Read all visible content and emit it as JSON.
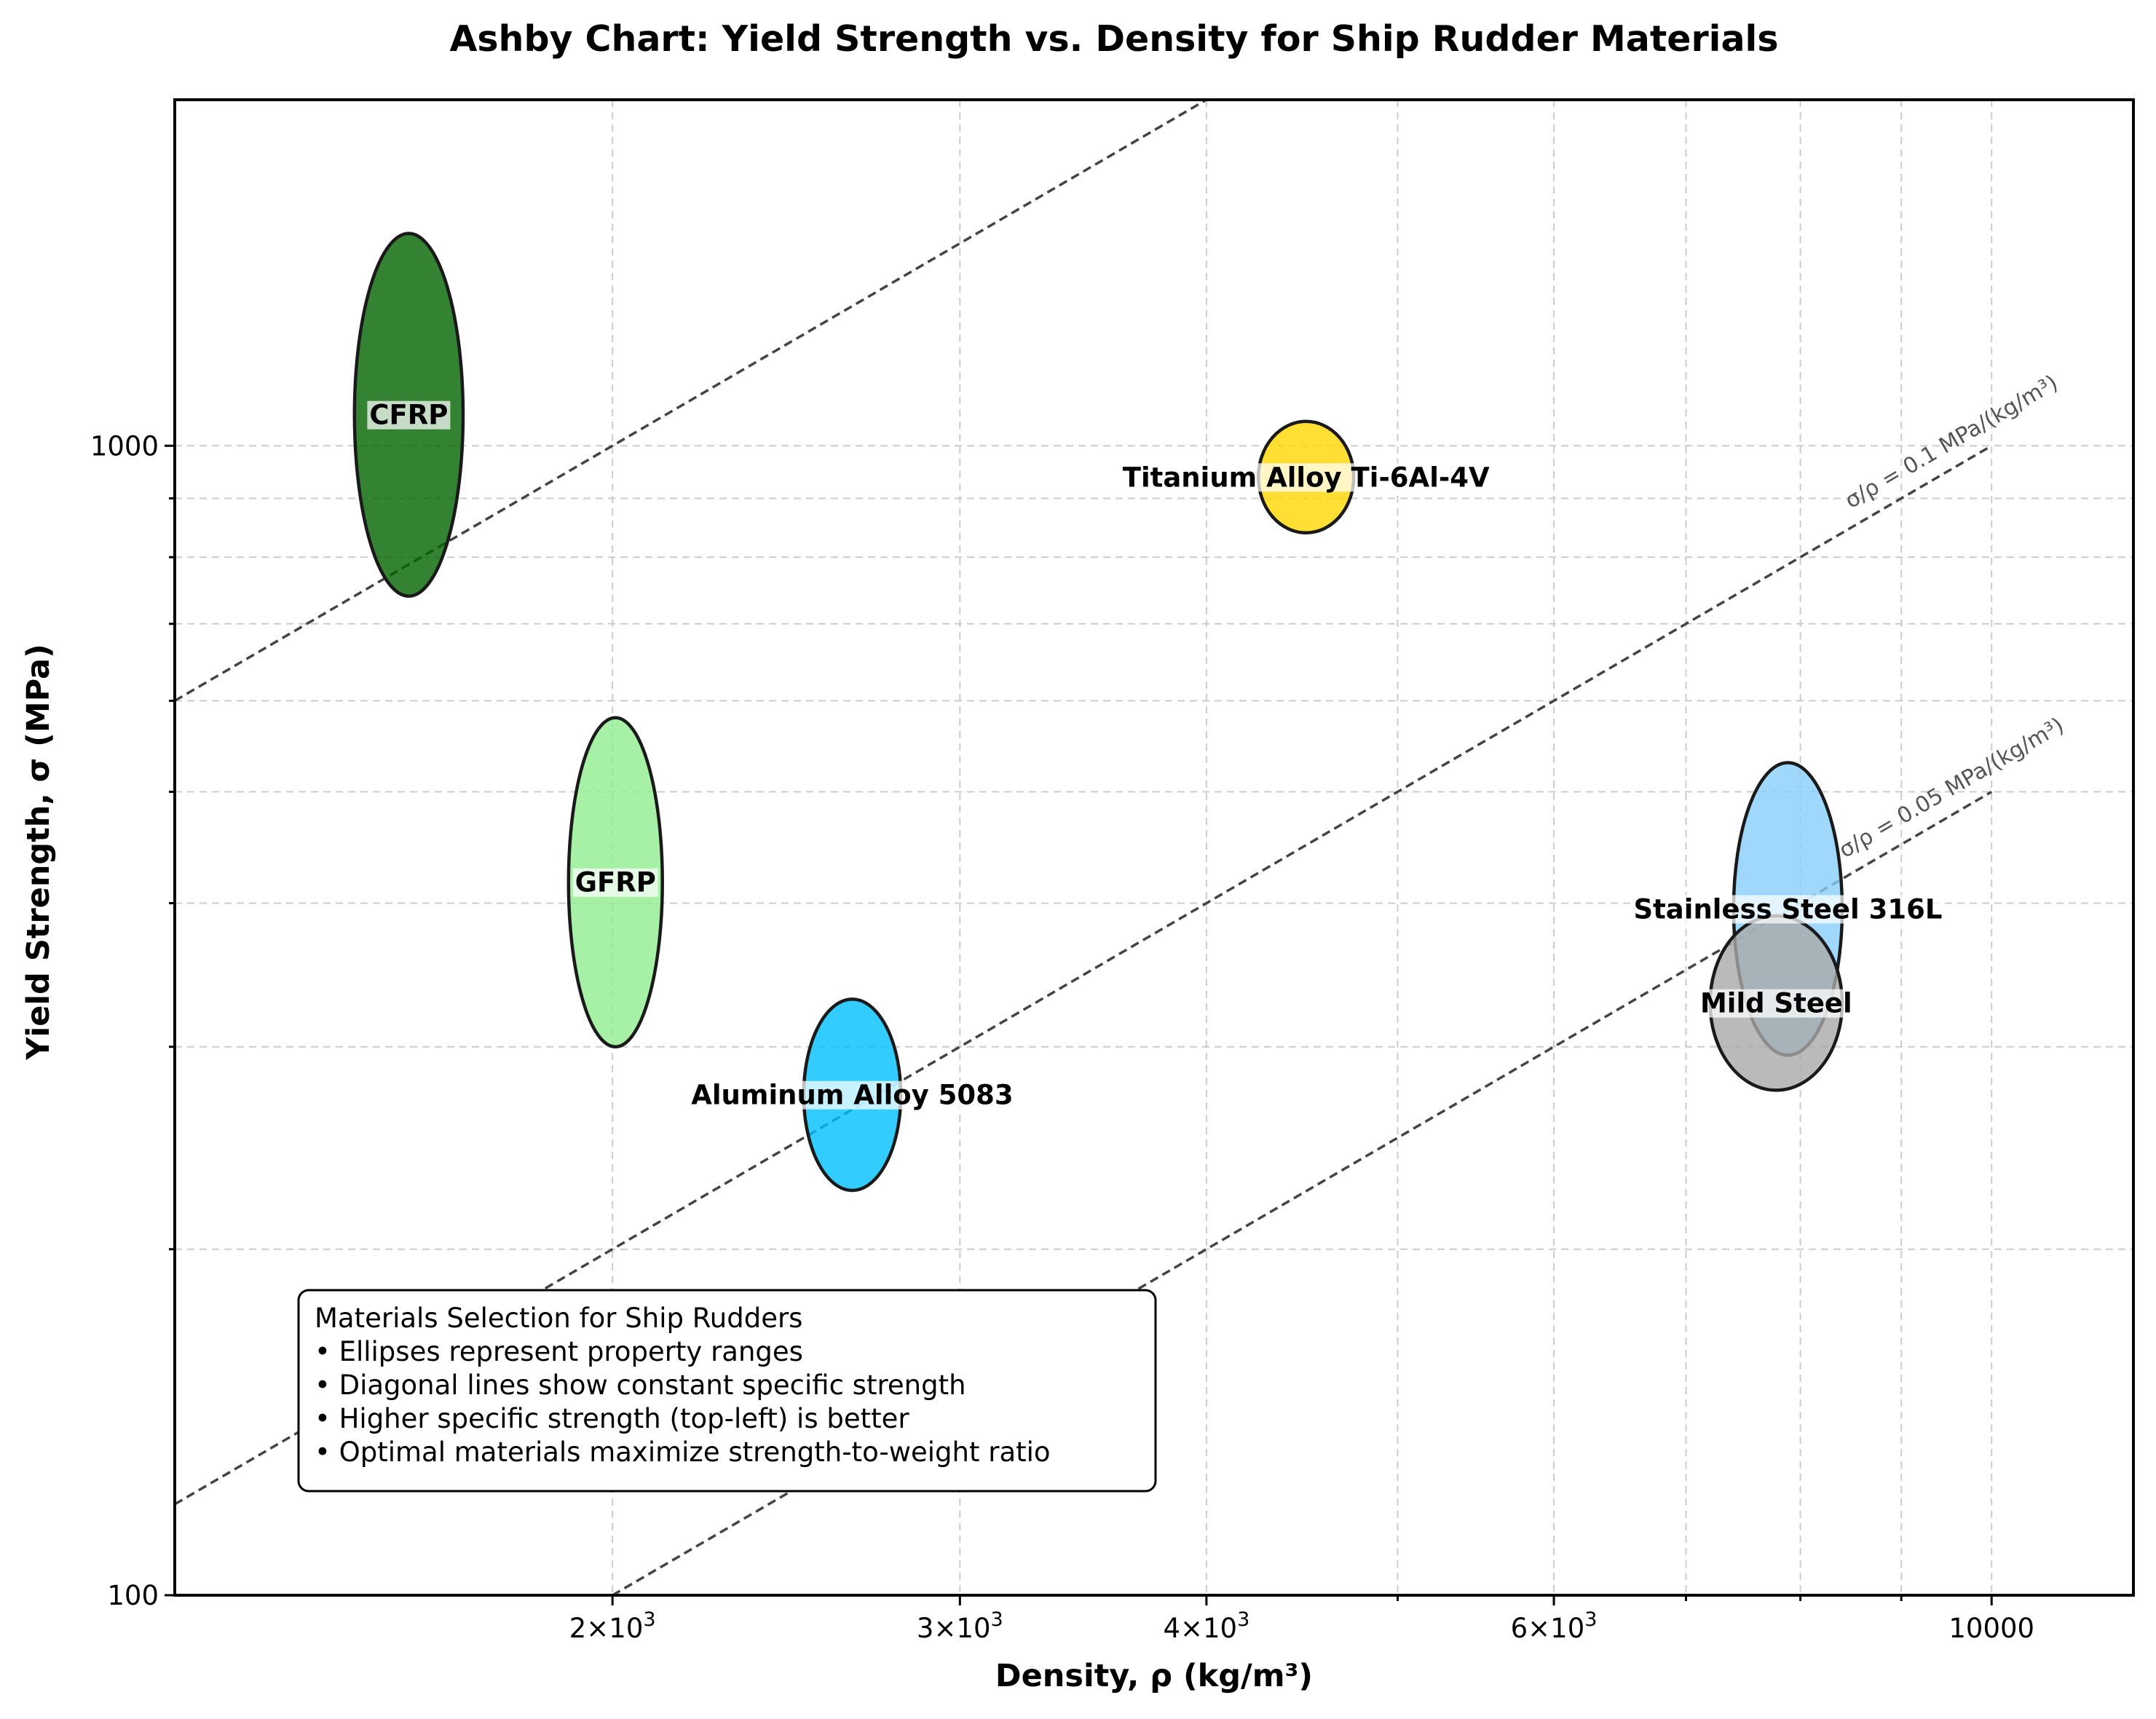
{
  "chart_data": {
    "type": "scatter",
    "title": "Ashby Chart: Yield Strength vs. Density for Ship Rudder Materials",
    "xlabel": "Density, ρ (kg/m³)",
    "ylabel": "Yield Strength, σ (MPa)",
    "xscale": "log",
    "yscale": "log",
    "xlim": [
      1200,
      11800
    ],
    "ylim": [
      100,
      2000
    ],
    "grid": true,
    "x_ticks": [
      {
        "value": 2000,
        "label": "2×10³",
        "mant": "2×10",
        "exp": "3"
      },
      {
        "value": 3000,
        "label": "3×10³",
        "mant": "3×10",
        "exp": "3"
      },
      {
        "value": 4000,
        "label": "4×10³",
        "mant": "4×10",
        "exp": "3"
      },
      {
        "value": 6000,
        "label": "6×10³",
        "mant": "6×10",
        "exp": "3"
      },
      {
        "value": 10000,
        "label": "10000",
        "mant": "10000",
        "exp": ""
      }
    ],
    "y_ticks": [
      {
        "value": 100,
        "label": "100"
      },
      {
        "value": 1000,
        "label": "1000"
      }
    ],
    "materials": [
      {
        "name": "CFRP",
        "density": [
          1480,
          1680
        ],
        "strength": [
          740,
          1530
        ],
        "color": "#006400"
      },
      {
        "name": "Titanium Alloy Ti-6Al-4V",
        "density": [
          4250,
          4750
        ],
        "strength": [
          840,
          1050
        ],
        "color": "#FFD700"
      },
      {
        "name": "GFRP",
        "density": [
          1900,
          2120
        ],
        "strength": [
          300,
          580
        ],
        "color": "#90EE90"
      },
      {
        "name": "Aluminum Alloy 5083",
        "density": [
          2500,
          2800
        ],
        "strength": [
          225,
          330
        ],
        "color": "#00BFFF"
      },
      {
        "name": "Stainless Steel 316L",
        "density": [
          7400,
          8400
        ],
        "strength": [
          295,
          530
        ],
        "color": "#87CEFA"
      },
      {
        "name": "Mild Steel",
        "density": [
          7200,
          8400
        ],
        "strength": [
          275,
          390
        ],
        "color": "#A9A9A9"
      }
    ],
    "reference_lines": [
      {
        "ratio": 0.5,
        "label": ""
      },
      {
        "ratio": 0.1,
        "label": "σ/ρ = 0.1 MPa/(kg/m³)"
      },
      {
        "ratio": 0.05,
        "label": "σ/ρ = 0.05 MPa/(kg/m³)"
      }
    ]
  },
  "annotation_box": {
    "title": "Materials Selection for Ship Rudders",
    "lines": [
      "• Ellipses represent property ranges",
      "• Diagonal lines show constant specific strength",
      "• Higher specific strength (top-left) is better",
      "• Optimal materials maximize strength-to-weight ratio"
    ]
  }
}
